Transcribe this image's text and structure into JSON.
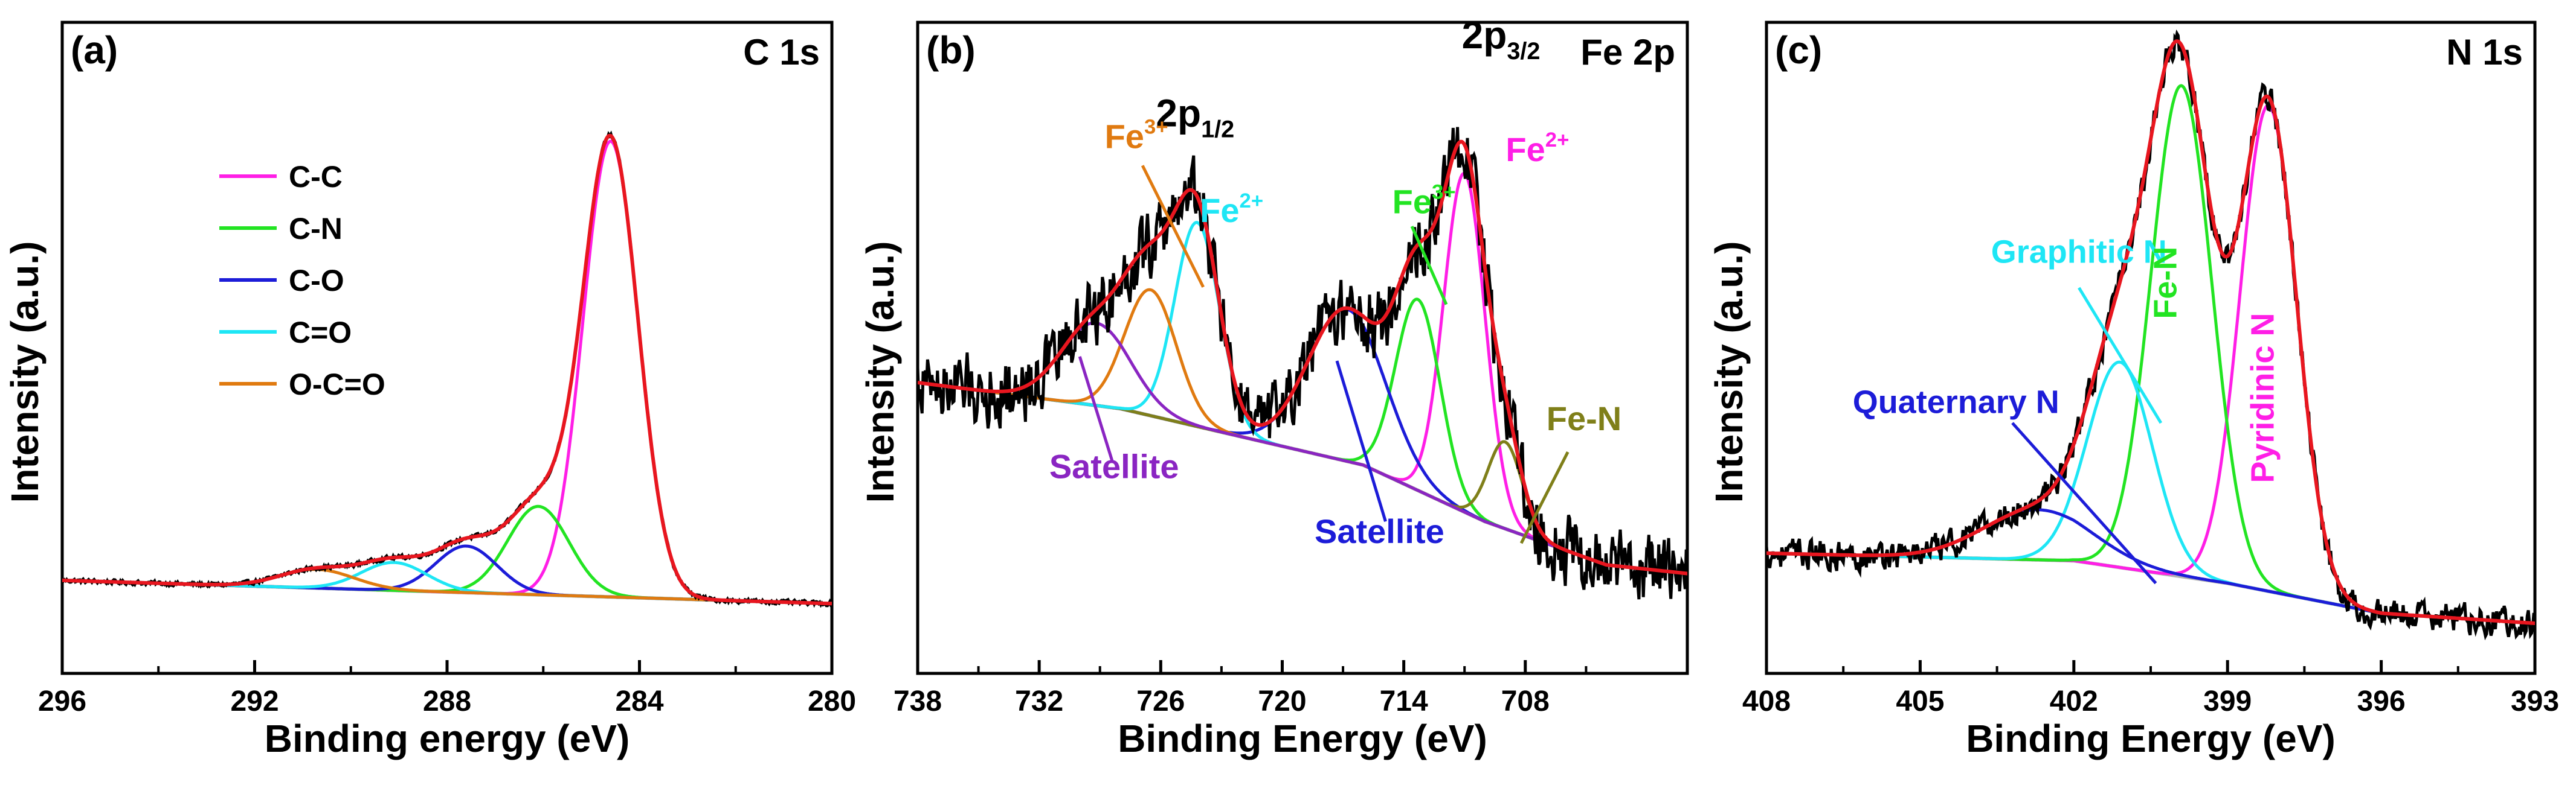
{
  "colors": {
    "raw": "#000000",
    "fit": "#e8161f",
    "background": "#b3b3b3",
    "magenta": "#ff1ee6",
    "green": "#22e422",
    "blue": "#1c1cd8",
    "cyan": "#1ee6f5",
    "orange": "#e07a10",
    "purple": "#8a25c2",
    "olive": "#7f7f19"
  },
  "chart_data": [
    {
      "type": "line",
      "panel_label": "(a)",
      "title": "C 1s",
      "xlabel": "Binding energy (eV)",
      "ylabel": "Intensity (a.u.)",
      "xlim": [
        296,
        280
      ],
      "ylim": [
        -0.2,
        1.2
      ],
      "xticks": [
        "296",
        "292",
        "288",
        "284",
        "280"
      ],
      "legend": {
        "position": "top-left",
        "entries": [
          "C-C",
          "C-N",
          "C-O",
          "C=O",
          "O-C=O"
        ]
      },
      "series": [
        {
          "name": "C-C",
          "color": "magenta",
          "peaks": [
            {
              "center": 284.6,
              "height": 0.98,
              "fwhm": 1.35
            }
          ]
        },
        {
          "name": "C-N",
          "color": "green",
          "peaks": [
            {
              "center": 286.1,
              "height": 0.19,
              "fwhm": 1.5
            }
          ]
        },
        {
          "name": "C-O",
          "color": "blue",
          "peaks": [
            {
              "center": 287.6,
              "height": 0.1,
              "fwhm": 1.5
            }
          ]
        },
        {
          "name": "C=O",
          "color": "cyan",
          "peaks": [
            {
              "center": 289.1,
              "height": 0.06,
              "fwhm": 1.6
            }
          ]
        },
        {
          "name": "O-C=O",
          "color": "orange",
          "peaks": [
            {
              "center": 290.7,
              "height": 0.04,
              "fwhm": 1.8
            }
          ]
        }
      ],
      "background": {
        "type": "linear",
        "x": [
          296,
          280
        ],
        "y": [
          0.0,
          -0.05
        ]
      },
      "raw_noise": 0.004,
      "labels": []
    },
    {
      "type": "line",
      "panel_label": "(b)",
      "title": "Fe 2p",
      "xlabel": "Binding Energy (eV)",
      "ylabel": "Intensity (a.u.)",
      "xlim": [
        738,
        700
      ],
      "ylim": [
        -0.25,
        1.25
      ],
      "xticks": [
        "738",
        "732",
        "726",
        "720",
        "714",
        "708"
      ],
      "legend": null,
      "series": [
        {
          "name": "Fe2+ 2p3/2",
          "color": "magenta",
          "peaks": [
            {
              "center": 711.0,
              "height": 0.78,
              "fwhm": 2.4
            }
          ]
        },
        {
          "name": "Fe3+ 2p3/2",
          "color": "green",
          "peaks": [
            {
              "center": 713.3,
              "height": 0.44,
              "fwhm": 2.6
            }
          ]
        },
        {
          "name": "Satellite 2p3/2",
          "color": "blue",
          "peaks": [
            {
              "center": 716.8,
              "height": 0.35,
              "fwhm": 4.5
            }
          ]
        },
        {
          "name": "Fe-N",
          "color": "olive",
          "peaks": [
            {
              "center": 709.0,
              "height": 0.2,
              "fwhm": 2.0
            }
          ]
        },
        {
          "name": "Fe2+ 2p1/2",
          "color": "cyan",
          "peaks": [
            {
              "center": 724.2,
              "height": 0.47,
              "fwhm": 2.6
            }
          ]
        },
        {
          "name": "Fe3+ 2p1/2",
          "color": "orange",
          "peaks": [
            {
              "center": 726.5,
              "height": 0.29,
              "fwhm": 3.0
            }
          ]
        },
        {
          "name": "Satellite 2p1/2",
          "color": "purple",
          "peaks": [
            {
              "center": 729.2,
              "height": 0.19,
              "fwhm": 4.0
            }
          ]
        }
      ],
      "background": {
        "type": "piecewise",
        "x": [
          738,
          728,
          716,
          710,
          704,
          700
        ],
        "y": [
          0.42,
          0.36,
          0.23,
          0.1,
          0.0,
          -0.02
        ]
      },
      "raw_noise": 0.07,
      "labels": [
        {
          "text": "2p",
          "sub": "1/2",
          "x": 724.3,
          "y": 1.01,
          "color": "raw",
          "size": 64
        },
        {
          "text": "2p",
          "sub": "3/2",
          "x": 709.2,
          "y": 1.19,
          "color": "raw",
          "size": 64
        },
        {
          "text": "Fe",
          "sup": "3+",
          "x": 727.2,
          "y": 0.96,
          "color": "orange",
          "size": 56
        },
        {
          "text": "Fe",
          "sup": "2+",
          "x": 722.5,
          "y": 0.79,
          "color": "cyan",
          "size": 56
        },
        {
          "text": "Fe",
          "sup": "3+",
          "x": 713.0,
          "y": 0.81,
          "color": "green",
          "size": 56
        },
        {
          "text": "Fe",
          "sup": "2+",
          "x": 707.4,
          "y": 0.93,
          "color": "magenta",
          "size": 56
        },
        {
          "text": "Satellite",
          "x": 728.3,
          "y": 0.2,
          "color": "purple",
          "size": 56
        },
        {
          "text": "Satellite",
          "x": 715.2,
          "y": 0.05,
          "color": "blue",
          "size": 56
        },
        {
          "text": "Fe-N",
          "x": 705.1,
          "y": 0.31,
          "color": "olive",
          "size": 56
        }
      ]
    },
    {
      "type": "line",
      "panel_label": "(c)",
      "title": "N 1s",
      "xlabel": "Binding Energy (eV)",
      "ylabel": "Intensity (a.u.)",
      "xlim": [
        408,
        393
      ],
      "ylim": [
        -0.1,
        1.2
      ],
      "xticks": [
        "408",
        "405",
        "402",
        "399",
        "396",
        "393"
      ],
      "legend": null,
      "series": [
        {
          "name": "Pyridinic N",
          "color": "magenta",
          "peaks": [
            {
              "center": 398.2,
              "height": 0.97,
              "fwhm": 1.3
            }
          ]
        },
        {
          "name": "Fe-N",
          "color": "green",
          "peaks": [
            {
              "center": 399.9,
              "height": 0.98,
              "fwhm": 1.4
            }
          ]
        },
        {
          "name": "Graphitic N",
          "color": "cyan",
          "peaks": [
            {
              "center": 401.1,
              "height": 0.41,
              "fwhm": 1.5
            }
          ]
        },
        {
          "name": "Quaternary N",
          "color": "blue",
          "peaks": [
            {
              "center": 402.7,
              "height": 0.1,
              "fwhm": 2.5
            }
          ]
        }
      ],
      "background": {
        "type": "piecewise",
        "x": [
          408,
          402,
          399,
          396,
          393
        ],
        "y": [
          0.14,
          0.125,
          0.08,
          0.02,
          0.0
        ]
      },
      "raw_noise": 0.025,
      "labels": [
        {
          "text": "Graphitic N",
          "x": 401.9,
          "y": 0.72,
          "color": "cyan",
          "size": 54
        },
        {
          "text": "Quaternary N",
          "x": 404.3,
          "y": 0.42,
          "color": "blue",
          "size": 54
        },
        {
          "text": "Fe-N",
          "x": 400.0,
          "y": 0.68,
          "color": "green",
          "size": 54,
          "rotate": -90
        },
        {
          "text": "Pyridinic N",
          "x": 398.1,
          "y": 0.45,
          "color": "magenta",
          "size": 54,
          "rotate": -90
        }
      ]
    }
  ]
}
